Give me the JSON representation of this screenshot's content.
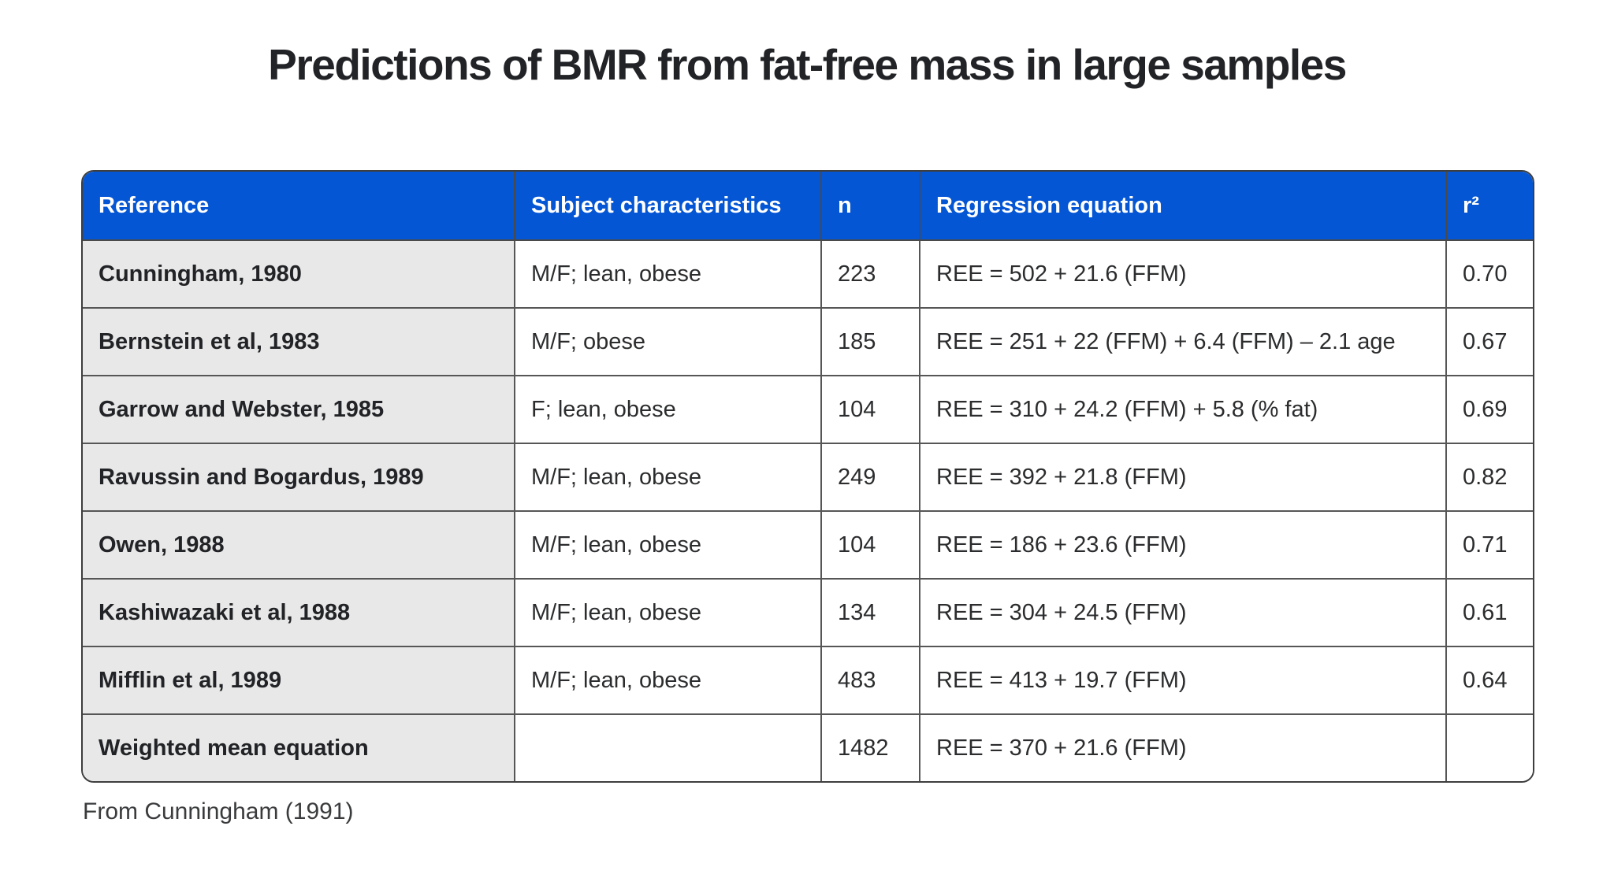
{
  "page": {
    "title": "Predictions of BMR from fat-free mass in large samples",
    "source_note": "From Cunningham (1991)"
  },
  "colors": {
    "header_background": "#0556d4",
    "header_text": "#ffffff",
    "reference_column_background": "#e8e8e8",
    "body_text": "#2b2c2e",
    "grid_line": "#4a4a4a"
  },
  "table": {
    "columns": [
      "Reference",
      "Subject characteristics",
      "n",
      "Regression equation",
      "r²"
    ],
    "rows": [
      {
        "reference": "Cunningham, 1980",
        "subjects": "M/F; lean, obese",
        "n": "223",
        "equation": "REE = 502 + 21.6 (FFM)",
        "r2": "0.70"
      },
      {
        "reference": "Bernstein et al, 1983",
        "subjects": "M/F; obese",
        "n": "185",
        "equation": "REE = 251 + 22 (FFM) + 6.4 (FFM) – 2.1 age",
        "r2": "0.67"
      },
      {
        "reference": "Garrow and Webster, 1985",
        "subjects": "F; lean, obese",
        "n": "104",
        "equation": "REE = 310 + 24.2 (FFM) + 5.8 (% fat)",
        "r2": "0.69"
      },
      {
        "reference": "Ravussin and Bogardus, 1989",
        "subjects": "M/F; lean, obese",
        "n": "249",
        "equation": "REE = 392 + 21.8 (FFM)",
        "r2": "0.82"
      },
      {
        "reference": "Owen, 1988",
        "subjects": "M/F; lean, obese",
        "n": "104",
        "equation": "REE = 186 + 23.6 (FFM)",
        "r2": "0.71"
      },
      {
        "reference": "Kashiwazaki et al, 1988",
        "subjects": "M/F; lean, obese",
        "n": "134",
        "equation": "REE = 304 + 24.5 (FFM)",
        "r2": "0.61"
      },
      {
        "reference": "Mifflin et al, 1989",
        "subjects": "M/F; lean, obese",
        "n": "483",
        "equation": "REE = 413 + 19.7 (FFM)",
        "r2": "0.64"
      },
      {
        "reference": "Weighted mean equation",
        "subjects": "",
        "n": "1482",
        "equation": "REE = 370 + 21.6 (FFM)",
        "r2": ""
      }
    ]
  }
}
